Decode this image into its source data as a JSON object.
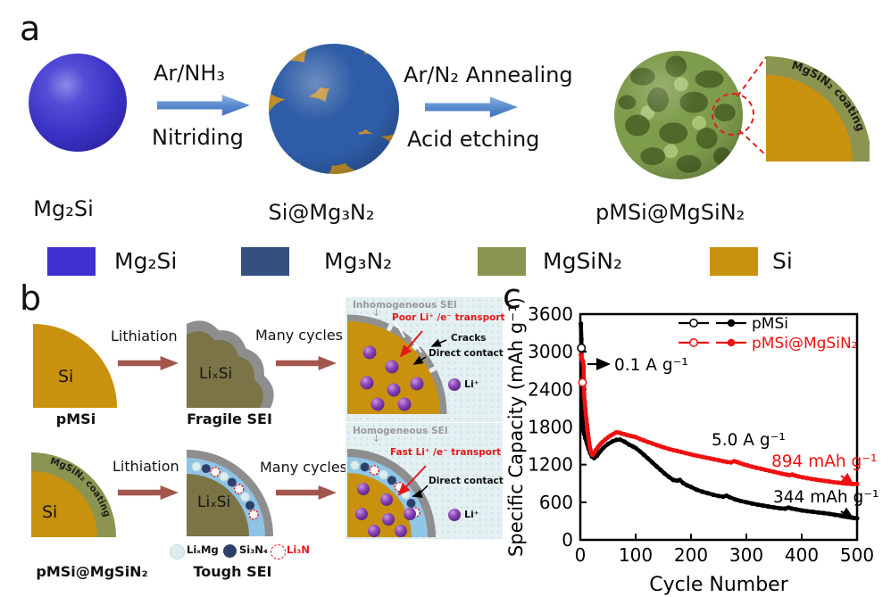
{
  "panel_a": {
    "label": "a",
    "product1": "Mg₂Si",
    "product2": "Si@Mg₃N₂",
    "product3": "pMSi@MgSiN₂",
    "step1": {
      "top": "Ar/NH₃",
      "bottom": "Nitriding"
    },
    "step2": {
      "top": "Ar/N₂ Annealing",
      "bottom": "Acid etching"
    },
    "inset_coating": "MgSiN₂ coating",
    "legend": [
      {
        "label": "Mg₂Si",
        "color": "#3e31cf"
      },
      {
        "label": "Mg₃N₂",
        "color": "#33507e"
      },
      {
        "label": "MgSiN₂",
        "color": "#8b9450"
      },
      {
        "label": "Si",
        "color": "#c9920e"
      }
    ]
  },
  "panel_b": {
    "label": "b",
    "lithiation": "Lithiation",
    "many_cycles": "Many cycles",
    "row1": {
      "core": "Si",
      "name": "pMSi",
      "mid": "LiₓSi",
      "mid_name": "Fragile SEI"
    },
    "row2": {
      "core": "Si",
      "coating": "MgSiN₂ coating",
      "name": "pMSi@MgSiN₂",
      "mid": "LiₓSi",
      "mid_name": "Tough SEI"
    },
    "mini_legend": [
      {
        "label": "LiₓMg",
        "color": "#111111"
      },
      {
        "label": "Si₃N₄",
        "color": "#111111"
      },
      {
        "label": "Li₃N",
        "color": "#e31919"
      }
    ],
    "box1": {
      "title": "Inhomogeneous SEI",
      "transport": "Poor Li⁺ /e⁻ transport",
      "cracks": "Cracks",
      "contact": "Direct contact",
      "ion": "Li⁺"
    },
    "box2": {
      "title": "Homogeneous SEI",
      "transport": "Fast Li⁺ /e⁻ transport",
      "contact": "Direct contact",
      "ion": "Li⁺"
    }
  },
  "panel_c": {
    "label": "c"
  },
  "chart_data": {
    "type": "line",
    "title": "",
    "xlabel": "Cycle Number",
    "ylabel": "Specific Capacity (mAh g⁻¹)",
    "xlim": [
      0,
      500
    ],
    "ylim": [
      0,
      3600
    ],
    "xticks": [
      0,
      100,
      200,
      300,
      400,
      500
    ],
    "yticks": [
      0,
      600,
      1200,
      1800,
      2400,
      3000,
      3600
    ],
    "grid": false,
    "legend_position": "top-right",
    "annotations": [
      {
        "text": "0.1 A g⁻¹",
        "color": "#000000"
      },
      {
        "text": "5.0 A g⁻¹",
        "color": "#000000"
      },
      {
        "text": "894 mAh g⁻¹",
        "color": "#ee1111"
      },
      {
        "text": "344 mAh g⁻¹",
        "color": "#000000"
      }
    ],
    "series": [
      {
        "name": "pMSi",
        "color": "#000000",
        "points": [
          [
            1,
            3450
          ],
          [
            2,
            3200
          ],
          [
            3,
            2050
          ],
          [
            4,
            1990
          ],
          [
            5,
            1760
          ],
          [
            7,
            1690
          ],
          [
            9,
            1620
          ],
          [
            12,
            1540
          ],
          [
            15,
            1450
          ],
          [
            18,
            1380
          ],
          [
            21,
            1330
          ],
          [
            25,
            1305
          ],
          [
            30,
            1340
          ],
          [
            35,
            1400
          ],
          [
            42,
            1470
          ],
          [
            50,
            1530
          ],
          [
            58,
            1570
          ],
          [
            65,
            1595
          ],
          [
            72,
            1600
          ],
          [
            80,
            1565
          ],
          [
            88,
            1520
          ],
          [
            95,
            1490
          ],
          [
            100,
            1465
          ],
          [
            108,
            1410
          ],
          [
            115,
            1355
          ],
          [
            122,
            1300
          ],
          [
            130,
            1235
          ],
          [
            138,
            1170
          ],
          [
            145,
            1115
          ],
          [
            152,
            1060
          ],
          [
            160,
            1005
          ],
          [
            168,
            955
          ],
          [
            175,
            945
          ],
          [
            180,
            955
          ],
          [
            186,
            905
          ],
          [
            193,
            870
          ],
          [
            200,
            845
          ],
          [
            210,
            800
          ],
          [
            220,
            770
          ],
          [
            230,
            745
          ],
          [
            240,
            720
          ],
          [
            250,
            700
          ],
          [
            258,
            690
          ],
          [
            264,
            705
          ],
          [
            270,
            680
          ],
          [
            280,
            645
          ],
          [
            290,
            620
          ],
          [
            300,
            600
          ],
          [
            310,
            580
          ],
          [
            320,
            563
          ],
          [
            330,
            548
          ],
          [
            340,
            532
          ],
          [
            350,
            518
          ],
          [
            360,
            505
          ],
          [
            370,
            498
          ],
          [
            376,
            515
          ],
          [
            382,
            500
          ],
          [
            390,
            487
          ],
          [
            400,
            470
          ],
          [
            410,
            458
          ],
          [
            420,
            448
          ],
          [
            430,
            437
          ],
          [
            440,
            427
          ],
          [
            450,
            415
          ],
          [
            460,
            400
          ],
          [
            470,
            388
          ],
          [
            480,
            372
          ],
          [
            490,
            358
          ],
          [
            500,
            344
          ]
        ]
      },
      {
        "name": "pMSi@MgSiN₂",
        "color": "#ee1111",
        "points": [
          [
            1,
            2950
          ],
          [
            2,
            2905
          ],
          [
            3,
            2880
          ],
          [
            4,
            2860
          ],
          [
            5,
            2840
          ],
          [
            6,
            2780
          ],
          [
            7,
            2300
          ],
          [
            8,
            2200
          ],
          [
            9,
            2100
          ],
          [
            10,
            2000
          ],
          [
            11,
            1920
          ],
          [
            12,
            1840
          ],
          [
            13,
            1760
          ],
          [
            14,
            1690
          ],
          [
            15,
            1620
          ],
          [
            16,
            1550
          ],
          [
            17,
            1490
          ],
          [
            18,
            1440
          ],
          [
            20,
            1380
          ],
          [
            22,
            1355
          ],
          [
            25,
            1390
          ],
          [
            28,
            1430
          ],
          [
            32,
            1480
          ],
          [
            36,
            1525
          ],
          [
            40,
            1560
          ],
          [
            45,
            1600
          ],
          [
            50,
            1635
          ],
          [
            55,
            1665
          ],
          [
            60,
            1690
          ],
          [
            65,
            1715
          ],
          [
            70,
            1710
          ],
          [
            75,
            1695
          ],
          [
            80,
            1685
          ],
          [
            85,
            1670
          ],
          [
            90,
            1660
          ],
          [
            95,
            1650
          ],
          [
            100,
            1640
          ],
          [
            108,
            1608
          ],
          [
            115,
            1585
          ],
          [
            122,
            1562
          ],
          [
            130,
            1538
          ],
          [
            138,
            1512
          ],
          [
            145,
            1492
          ],
          [
            152,
            1472
          ],
          [
            160,
            1450
          ],
          [
            168,
            1432
          ],
          [
            175,
            1418
          ],
          [
            182,
            1403
          ],
          [
            190,
            1385
          ],
          [
            198,
            1368
          ],
          [
            205,
            1352
          ],
          [
            212,
            1340
          ],
          [
            220,
            1325
          ],
          [
            228,
            1310
          ],
          [
            235,
            1298
          ],
          [
            242,
            1285
          ],
          [
            250,
            1270
          ],
          [
            258,
            1255
          ],
          [
            265,
            1242
          ],
          [
            272,
            1235
          ],
          [
            278,
            1255
          ],
          [
            283,
            1243
          ],
          [
            288,
            1225
          ],
          [
            295,
            1205
          ],
          [
            302,
            1188
          ],
          [
            310,
            1168
          ],
          [
            318,
            1150
          ],
          [
            326,
            1135
          ],
          [
            334,
            1118
          ],
          [
            342,
            1102
          ],
          [
            350,
            1085
          ],
          [
            358,
            1068
          ],
          [
            365,
            1055
          ],
          [
            372,
            1042
          ],
          [
            378,
            1032
          ],
          [
            383,
            1042
          ],
          [
            388,
            1025
          ],
          [
            395,
            1010
          ],
          [
            402,
            998
          ],
          [
            410,
            985
          ],
          [
            418,
            972
          ],
          [
            426,
            960
          ],
          [
            434,
            950
          ],
          [
            442,
            940
          ],
          [
            450,
            930
          ],
          [
            458,
            920
          ],
          [
            466,
            912
          ],
          [
            474,
            903
          ],
          [
            482,
            897
          ],
          [
            490,
            893
          ],
          [
            500,
            894
          ]
        ]
      }
    ],
    "open_markers": [
      {
        "series": 0,
        "x": 2,
        "y": 3060
      },
      {
        "series": 1,
        "x": 4,
        "y": 2510
      }
    ]
  }
}
